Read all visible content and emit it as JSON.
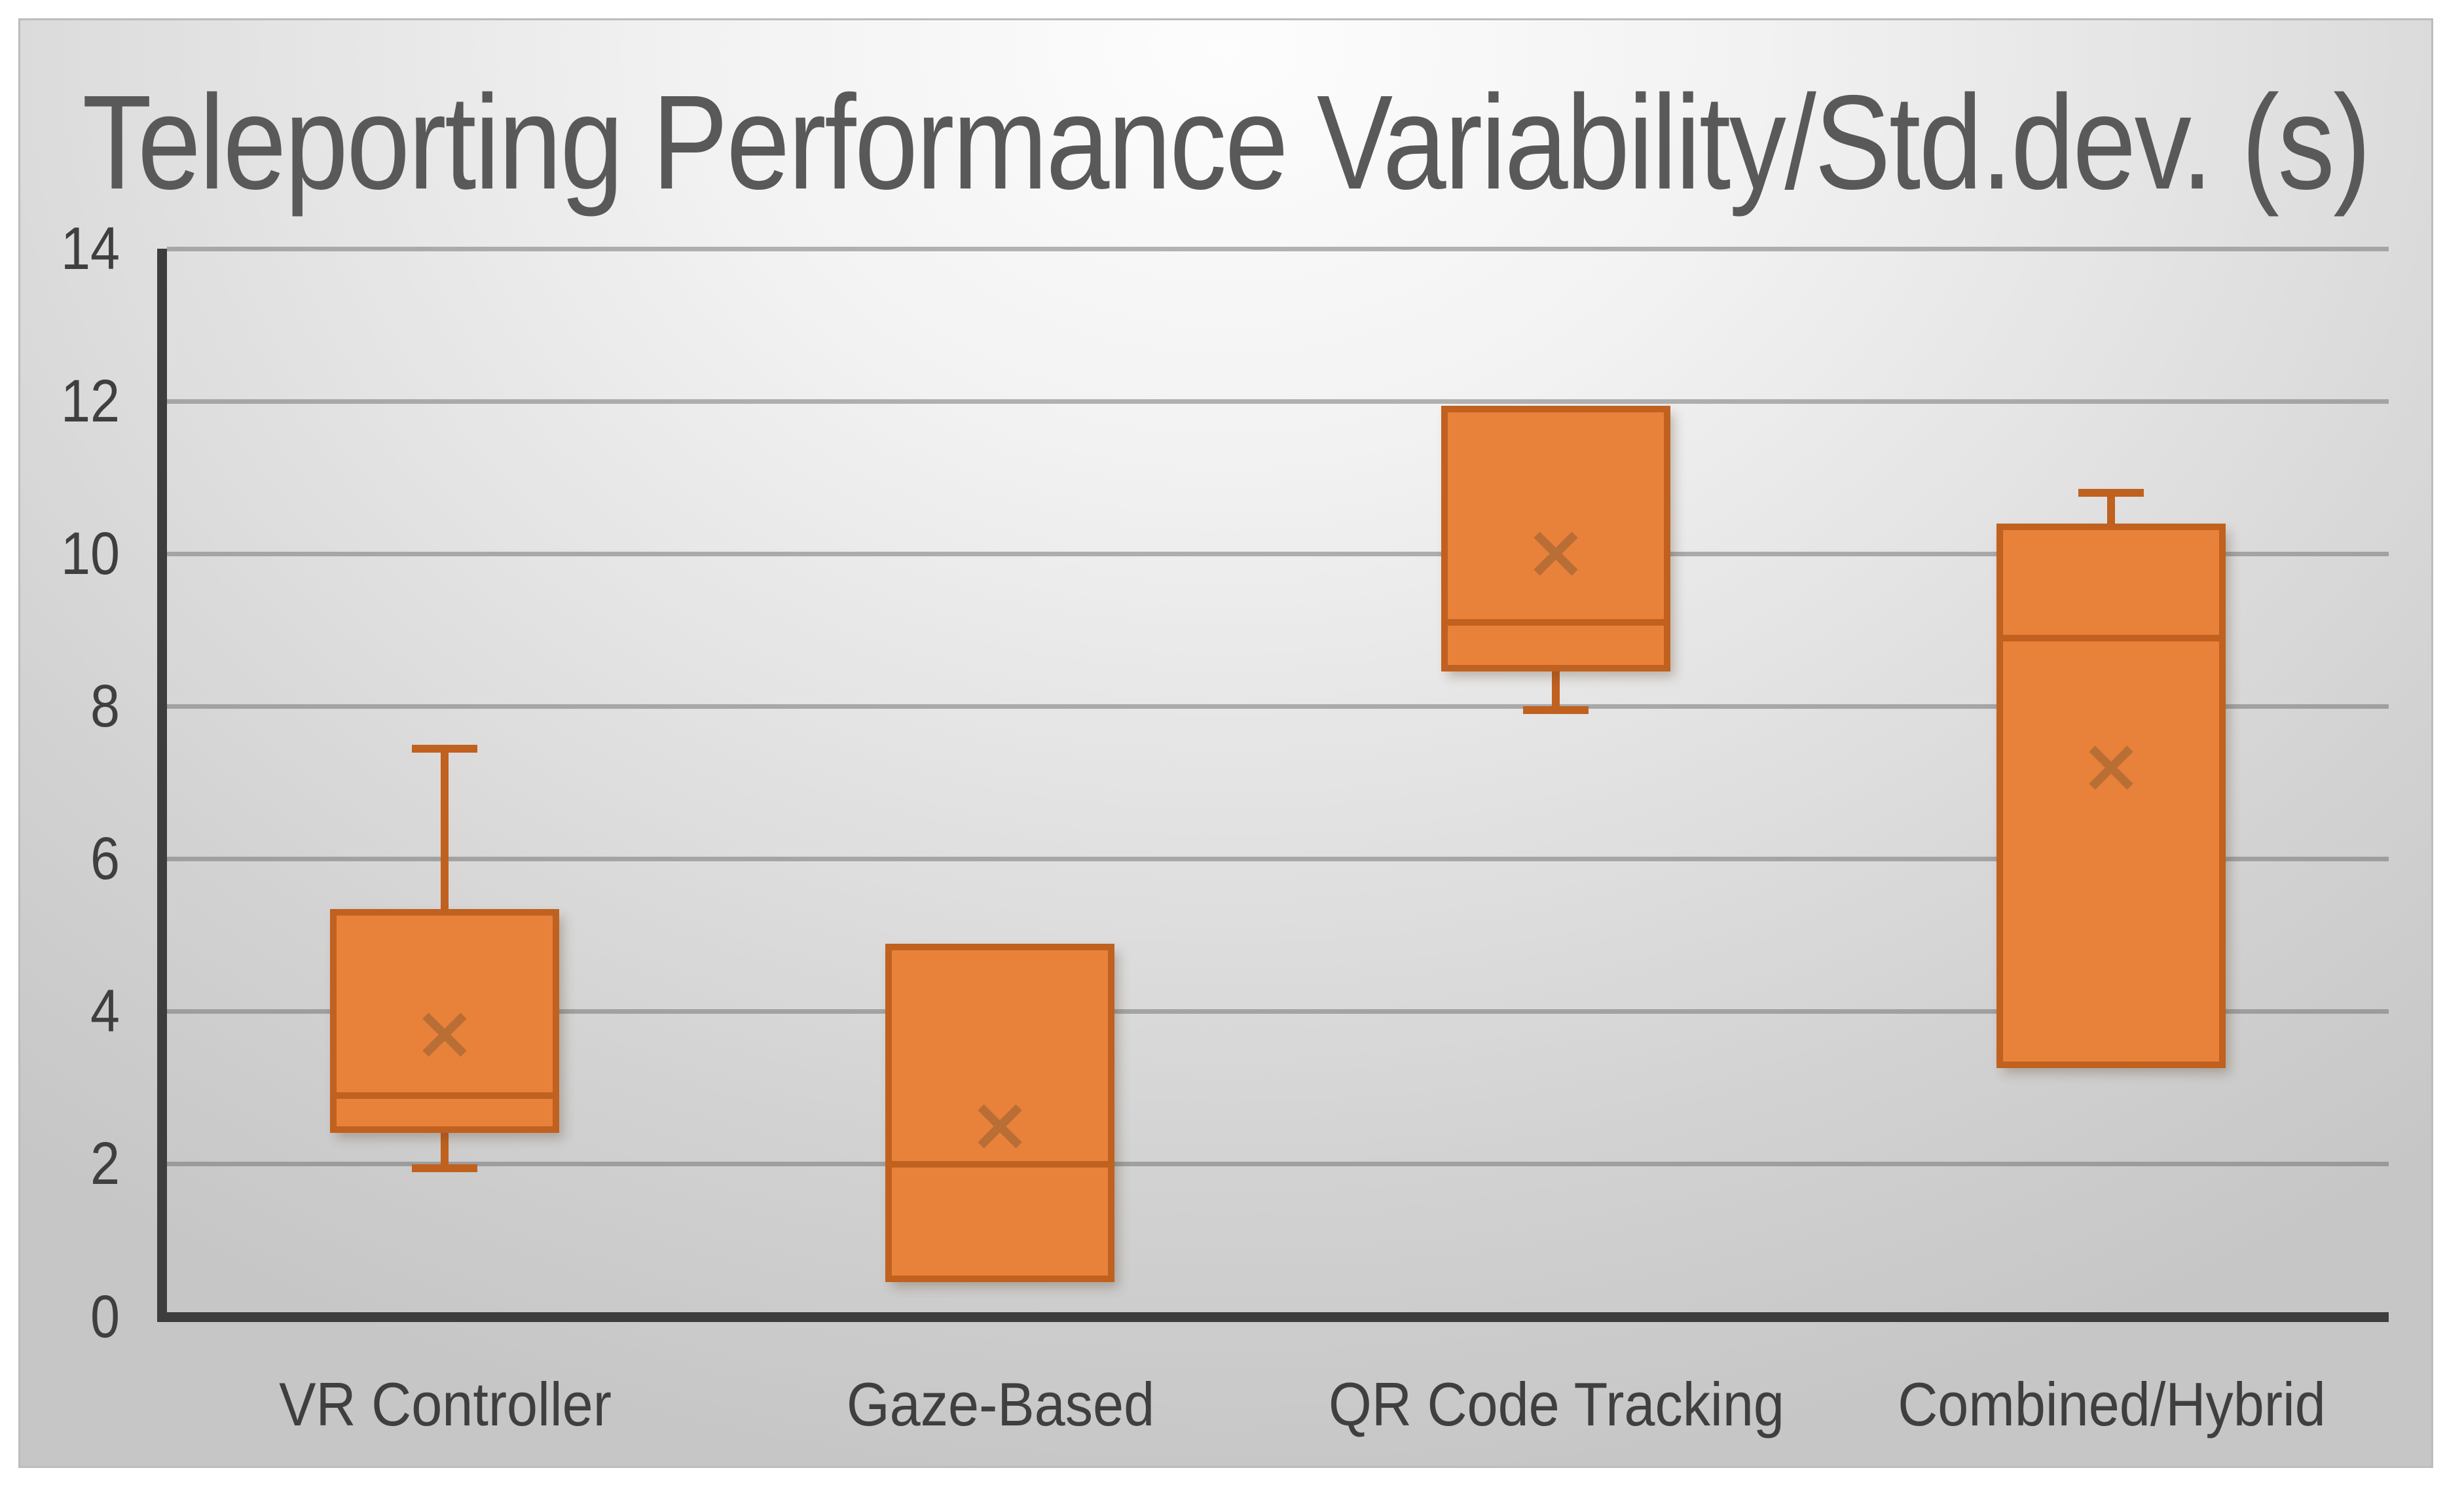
{
  "title": "Teleporting Performance Variability/Std.dev. (s)",
  "colors": {
    "box_fill": "#E8813A",
    "box_border": "#C0611F",
    "median_line": "#C0611F",
    "whisker": "#C0611F",
    "mean_marker": "#B86E35",
    "axis": "#3D3D3D",
    "gridline": "#8F8F8F",
    "title_text": "#595959",
    "tick_text": "#3F3F3F"
  },
  "chart_data": {
    "type": "boxplot",
    "title": "Teleporting Performance Variability/Std.dev. (s)",
    "xlabel": "",
    "ylabel": "",
    "ylim": [
      0,
      14
    ],
    "y_ticks": [
      0,
      2,
      4,
      6,
      8,
      10,
      12,
      14
    ],
    "grid": true,
    "legend": null,
    "categories": [
      "VR Controller",
      "Gaze-Based",
      "QR Code Tracking",
      "Combined/Hybrid"
    ],
    "series": [
      {
        "name": "VR Controller",
        "min": 1.95,
        "q1": 2.45,
        "median": 2.9,
        "q3": 5.3,
        "max": 7.45,
        "mean": 3.7
      },
      {
        "name": "Gaze-Based",
        "min": 0.5,
        "q1": 0.5,
        "median": 2.0,
        "q3": 4.85,
        "max": 4.85,
        "mean": 2.5
      },
      {
        "name": "QR Code Tracking",
        "min": 7.95,
        "q1": 8.5,
        "median": 9.1,
        "q3": 11.9,
        "max": 11.9,
        "mean": 10.0
      },
      {
        "name": "Combined/Hybrid",
        "min": 3.3,
        "q1": 3.3,
        "median": 8.9,
        "q3": 10.35,
        "max": 10.8,
        "mean": 7.2
      }
    ]
  }
}
